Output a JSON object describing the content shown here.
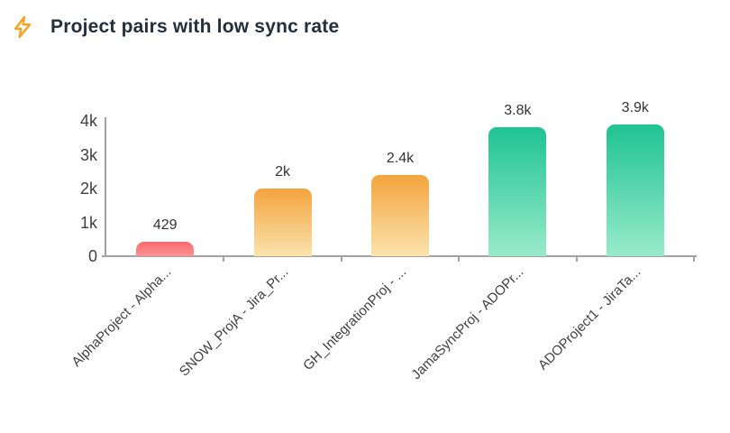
{
  "header": {
    "title": "Project pairs with low sync rate",
    "icon": "lightning-icon"
  },
  "colors": {
    "title": "#222f3e",
    "icon_accent": "#f6a31f",
    "axis": "#a2a2a2",
    "tick_label": "#404040",
    "value_label": "#333333",
    "background": "#ffffff"
  },
  "chart_data": {
    "type": "bar",
    "title": "Project pairs with low sync rate",
    "categories": [
      "AlphaProject - Alpha...",
      "SNOW_ProjA - Jira_Pr...",
      "GH_IntegrationProj - ...",
      "JamaSyncProj - ADOPr...",
      "ADOProject1 - JiraTa..."
    ],
    "values": [
      429,
      2000,
      2400,
      3800,
      3900
    ],
    "value_labels": [
      "429",
      "2k",
      "2.4k",
      "3.8k",
      "3.9k"
    ],
    "yticks": [
      "0",
      "1k",
      "2k",
      "3k",
      "4k"
    ],
    "ylim": [
      0,
      4000
    ],
    "xlabel": "",
    "ylabel": "",
    "grid": false,
    "legend": false,
    "category_label_rotation_deg": 45,
    "bar_gradients": [
      {
        "top": "#f9686c",
        "bottom": "#fa9595"
      },
      {
        "top": "#f3a43e",
        "bottom": "#fae3ad"
      },
      {
        "top": "#f3a43e",
        "bottom": "#fae3ad"
      },
      {
        "top": "#1fc392",
        "bottom": "#98ebcb"
      },
      {
        "top": "#1fc392",
        "bottom": "#98ebcb"
      }
    ]
  }
}
